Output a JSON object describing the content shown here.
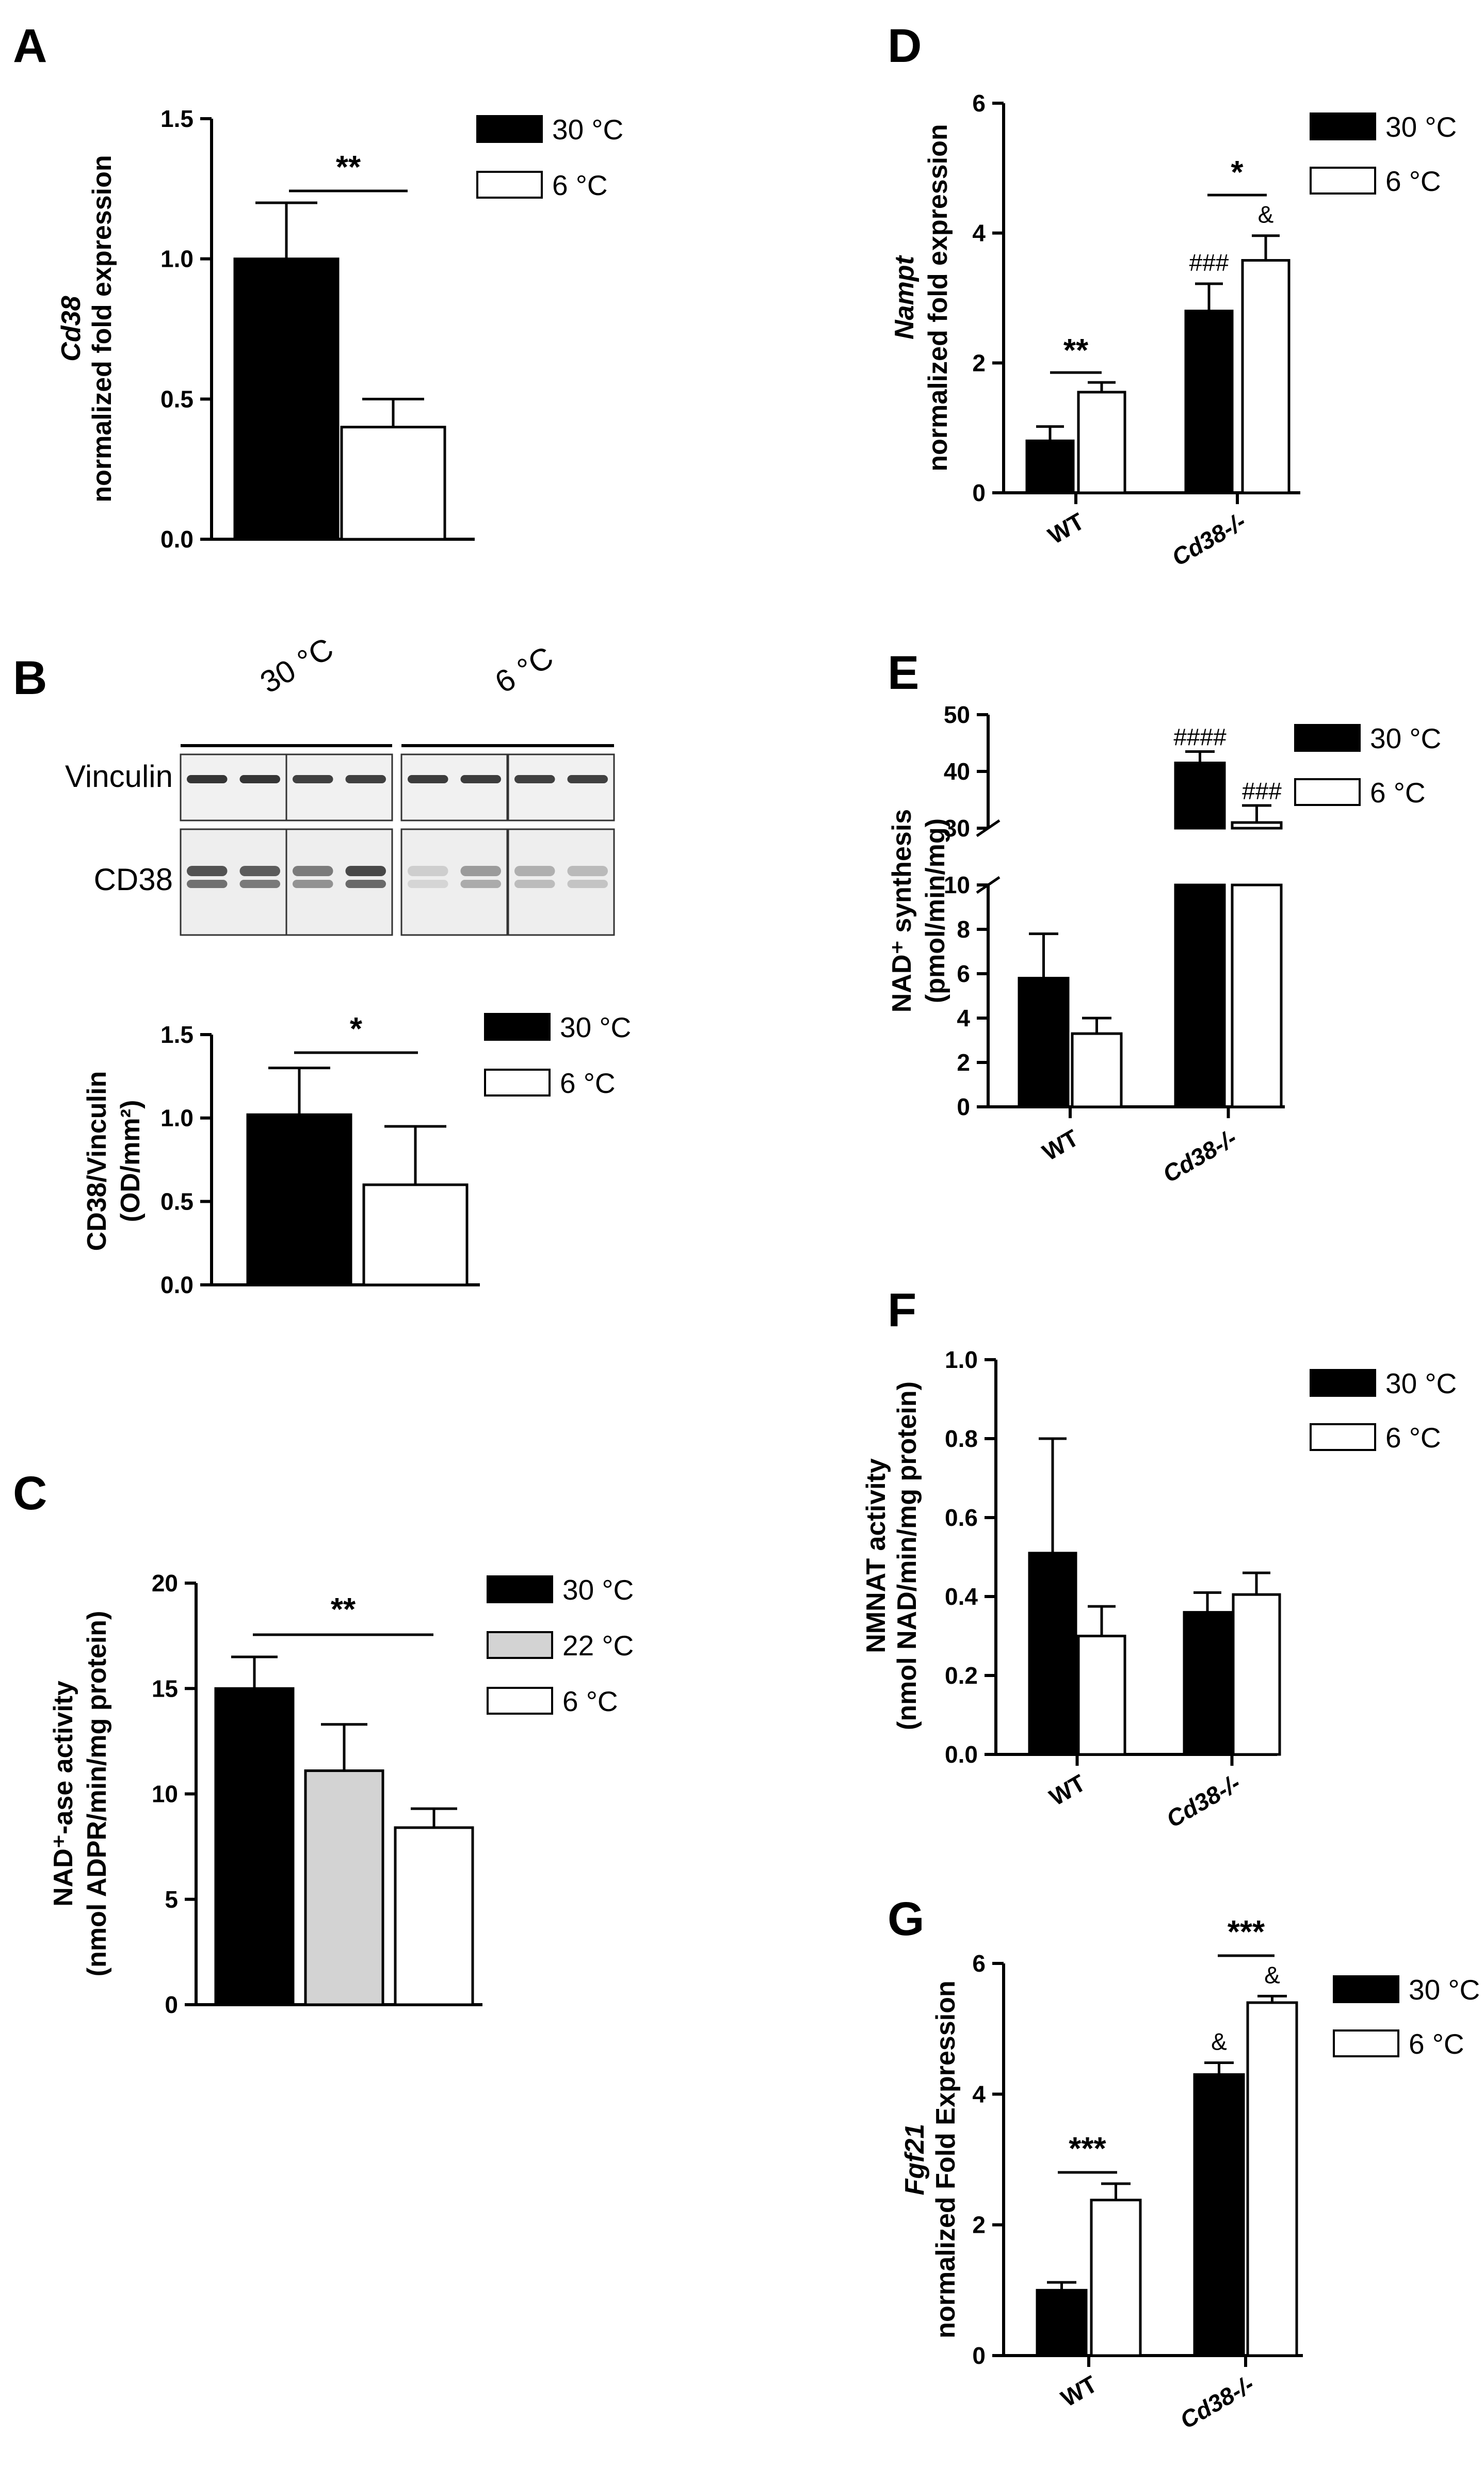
{
  "figure": {
    "panels": [
      "A",
      "B",
      "C",
      "D",
      "E",
      "F",
      "G"
    ],
    "colors": {
      "black": "#000000",
      "gray": "#d3d3d3",
      "white": "#ffffff"
    }
  },
  "blot": {
    "conditions": [
      "30 °C",
      "6 °C"
    ],
    "proteins": [
      "Vinculin",
      "CD38"
    ]
  },
  "chart_data": [
    {
      "panel": "A",
      "type": "bar",
      "ylabel_italic": "Cd38",
      "ylabel": "normalized fold expression",
      "ylim": [
        0,
        1.5
      ],
      "yticks": [
        "0.0",
        "0.5",
        "1.0",
        "1.5"
      ],
      "series": [
        {
          "name": "30 °C",
          "color": "#000000",
          "values": [
            1.0
          ],
          "errors": [
            0.2
          ]
        },
        {
          "name": "6 °C",
          "color": "#ffffff",
          "values": [
            0.4
          ],
          "errors": [
            0.1
          ]
        }
      ],
      "significance": [
        {
          "label": "**",
          "between": [
            "30 °C",
            "6 °C"
          ]
        }
      ]
    },
    {
      "panel": "B",
      "type": "bar",
      "ylabel": "CD38/Vinculin",
      "ylabel2": "(OD/mm²)",
      "ylim": [
        0,
        1.5
      ],
      "yticks": [
        "0.0",
        "0.5",
        "1.0",
        "1.5"
      ],
      "series": [
        {
          "name": "30 °C",
          "color": "#000000",
          "values": [
            1.02
          ],
          "errors": [
            0.28
          ]
        },
        {
          "name": "6 °C",
          "color": "#ffffff",
          "values": [
            0.6
          ],
          "errors": [
            0.35
          ]
        }
      ],
      "significance": [
        {
          "label": "*",
          "between": [
            "30 °C",
            "6 °C"
          ]
        }
      ]
    },
    {
      "panel": "C",
      "type": "bar",
      "ylabel": "NAD⁺-ase activity",
      "ylabel2": "(nmol ADPR/min/mg protein)",
      "ylim": [
        0,
        20
      ],
      "yticks": [
        "0",
        "5",
        "10",
        "15",
        "20"
      ],
      "series": [
        {
          "name": "30 °C",
          "color": "#000000",
          "values": [
            15.0
          ],
          "errors": [
            1.5
          ]
        },
        {
          "name": "22 °C",
          "color": "#d3d3d3",
          "values": [
            11.1
          ],
          "errors": [
            2.2
          ]
        },
        {
          "name": "6 °C",
          "color": "#ffffff",
          "values": [
            8.4
          ],
          "errors": [
            0.9
          ]
        }
      ],
      "significance": [
        {
          "label": "**",
          "between": [
            "30 °C",
            "6 °C"
          ]
        }
      ]
    },
    {
      "panel": "D",
      "type": "bar",
      "ylabel_italic": "Nampt",
      "ylabel": "normalized fold expression",
      "categories": [
        "WT",
        "Cd38-/-"
      ],
      "ylim": [
        0,
        6
      ],
      "yticks": [
        "0",
        "2",
        "4",
        "6"
      ],
      "series": [
        {
          "name": "30 °C",
          "color": "#000000",
          "values": [
            0.8,
            2.8
          ],
          "errors": [
            0.22,
            0.42
          ],
          "marks": [
            "",
            "###"
          ]
        },
        {
          "name": "6 °C",
          "color": "#ffffff",
          "values": [
            1.55,
            3.58
          ],
          "errors": [
            0.15,
            0.38
          ],
          "marks": [
            "",
            "&"
          ]
        }
      ],
      "significance": [
        {
          "label": "**",
          "category": "WT"
        },
        {
          "label": "*",
          "category": "Cd38-/-"
        }
      ]
    },
    {
      "panel": "E",
      "type": "bar",
      "ylabel": "NAD⁺ synthesis",
      "ylabel2": "(pmol/min/mg)",
      "categories": [
        "WT",
        "Cd38-/-"
      ],
      "ylim": [
        0,
        50
      ],
      "axis_break": [
        10,
        30
      ],
      "yticks": [
        "0",
        "2",
        "4",
        "6",
        "8",
        "10",
        "30",
        "40",
        "50"
      ],
      "series": [
        {
          "name": "30 °C",
          "color": "#000000",
          "values": [
            5.8,
            41.5
          ],
          "errors": [
            2.0,
            2.0
          ],
          "marks": [
            "",
            "####"
          ]
        },
        {
          "name": "6 °C",
          "color": "#ffffff",
          "values": [
            3.3,
            31.0
          ],
          "errors": [
            0.7,
            3.0
          ],
          "marks": [
            "",
            "###"
          ]
        }
      ]
    },
    {
      "panel": "F",
      "type": "bar",
      "ylabel": "NMNAT activity",
      "ylabel2": "(nmol NAD/min/mg protein)",
      "categories": [
        "WT",
        "Cd38-/-"
      ],
      "ylim": [
        0,
        1.0
      ],
      "yticks": [
        "0.0",
        "0.2",
        "0.4",
        "0.6",
        "0.8",
        "1.0"
      ],
      "series": [
        {
          "name": "30 °C",
          "color": "#000000",
          "values": [
            0.51,
            0.36
          ],
          "errors": [
            0.29,
            0.05
          ]
        },
        {
          "name": "6 °C",
          "color": "#ffffff",
          "values": [
            0.3,
            0.405
          ],
          "errors": [
            0.075,
            0.055
          ]
        }
      ]
    },
    {
      "panel": "G",
      "type": "bar",
      "ylabel_italic": "Fgf21",
      "ylabel": "normalized Fold Expression",
      "categories": [
        "WT",
        "Cd38-/-"
      ],
      "ylim": [
        0,
        6
      ],
      "yticks": [
        "0",
        "2",
        "4",
        "6"
      ],
      "series": [
        {
          "name": "30 °C",
          "color": "#000000",
          "values": [
            1.0,
            4.3
          ],
          "errors": [
            0.12,
            0.18
          ],
          "marks": [
            "",
            "&"
          ]
        },
        {
          "name": "6 °C",
          "color": "#ffffff",
          "values": [
            2.38,
            5.4
          ],
          "errors": [
            0.25,
            0.1
          ],
          "marks": [
            "",
            "&"
          ]
        }
      ],
      "significance": [
        {
          "label": "***",
          "category": "WT"
        },
        {
          "label": "***",
          "category": "Cd38-/-"
        }
      ]
    }
  ]
}
